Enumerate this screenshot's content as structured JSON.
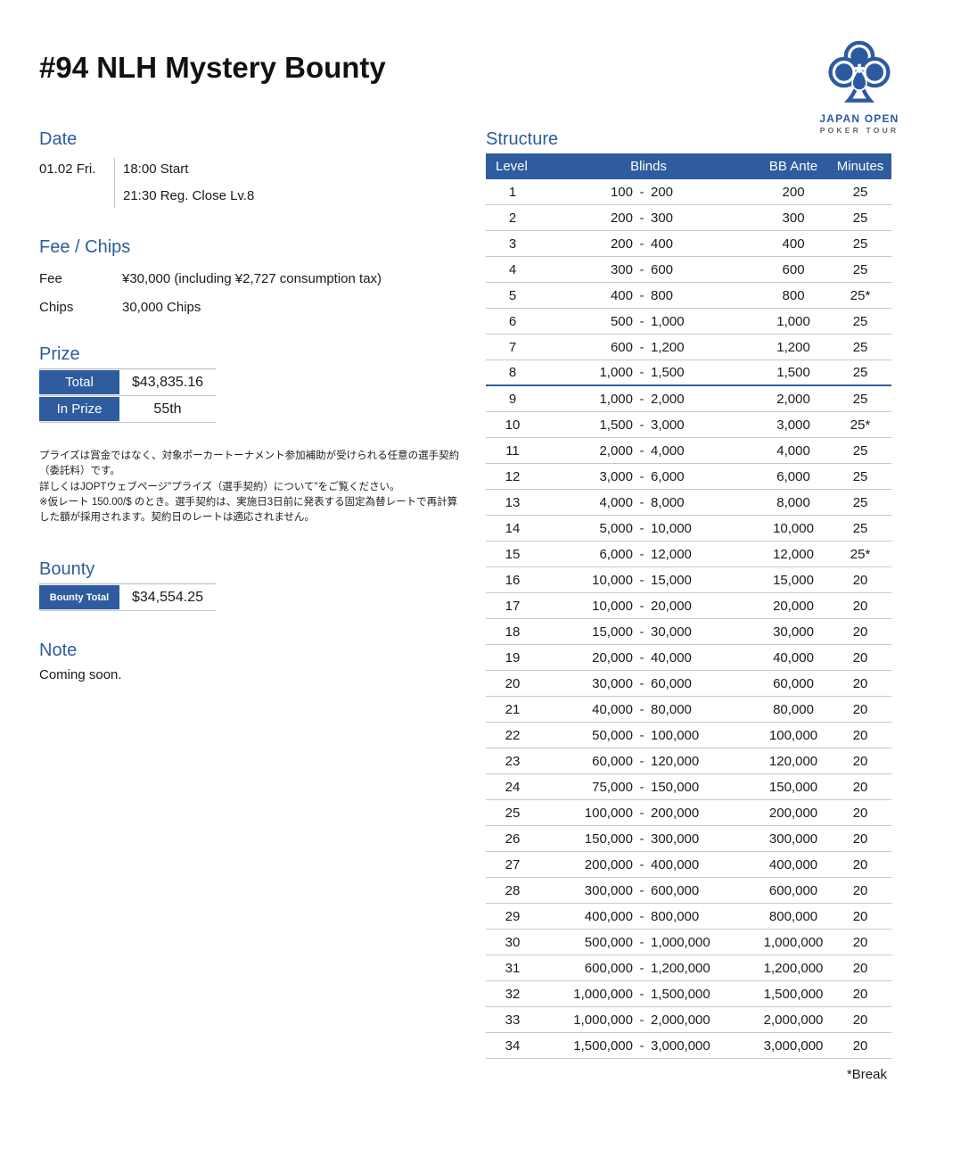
{
  "page": {
    "title": "#94 NLH Mystery Bounty"
  },
  "logo": {
    "icon": "club-drop-icon",
    "line1": "JAPAN OPEN",
    "line2": "POKER TOUR"
  },
  "date": {
    "heading": "Date",
    "day": "01.02 Fri.",
    "times": [
      "18:00 Start",
      "21:30 Reg. Close Lv.8"
    ]
  },
  "fee_chips": {
    "heading": "Fee / Chips",
    "rows": [
      {
        "label": "Fee",
        "value": "¥30,000 (including ¥2,727 consumption tax)"
      },
      {
        "label": "Chips",
        "value": "30,000 Chips"
      }
    ]
  },
  "prize": {
    "heading": "Prize",
    "rows": [
      {
        "label": "Total",
        "value": "$43,835.16"
      },
      {
        "label": "In Prize",
        "value": "55th"
      }
    ]
  },
  "disclaimer": {
    "lines": [
      "プライズは賞金ではなく、対象ポーカートーナメント参加補助が受けられる任意の選手契約（委託料）です。",
      "詳しくはJOPTウェブページ\"プライズ（選手契約）について\"をご覧ください。",
      "※仮レート 150.00/$ のとき。選手契約は、実施日3日前に発表する固定為替レートで再計算した額が採用されます。契約日のレートは適応されません。"
    ]
  },
  "bounty": {
    "heading": "Bounty",
    "label": "Bounty Total",
    "value": "$34,554.25"
  },
  "note": {
    "heading": "Note",
    "text": "Coming soon."
  },
  "structure": {
    "heading": "Structure",
    "columns": {
      "level": "Level",
      "blinds": "Blinds",
      "bb_ante": "BB Ante",
      "minutes": "Minutes"
    },
    "blinds_separator": "-",
    "reg_close_level": "8",
    "footnote": "*Break",
    "levels": [
      {
        "level": "1",
        "sb": "100",
        "bb": "200",
        "ante": "200",
        "min": "25"
      },
      {
        "level": "2",
        "sb": "200",
        "bb": "300",
        "ante": "300",
        "min": "25"
      },
      {
        "level": "3",
        "sb": "200",
        "bb": "400",
        "ante": "400",
        "min": "25"
      },
      {
        "level": "4",
        "sb": "300",
        "bb": "600",
        "ante": "600",
        "min": "25"
      },
      {
        "level": "5",
        "sb": "400",
        "bb": "800",
        "ante": "800",
        "min": "25*"
      },
      {
        "level": "6",
        "sb": "500",
        "bb": "1,000",
        "ante": "1,000",
        "min": "25"
      },
      {
        "level": "7",
        "sb": "600",
        "bb": "1,200",
        "ante": "1,200",
        "min": "25"
      },
      {
        "level": "8",
        "sb": "1,000",
        "bb": "1,500",
        "ante": "1,500",
        "min": "25"
      },
      {
        "level": "9",
        "sb": "1,000",
        "bb": "2,000",
        "ante": "2,000",
        "min": "25"
      },
      {
        "level": "10",
        "sb": "1,500",
        "bb": "3,000",
        "ante": "3,000",
        "min": "25*"
      },
      {
        "level": "11",
        "sb": "2,000",
        "bb": "4,000",
        "ante": "4,000",
        "min": "25"
      },
      {
        "level": "12",
        "sb": "3,000",
        "bb": "6,000",
        "ante": "6,000",
        "min": "25"
      },
      {
        "level": "13",
        "sb": "4,000",
        "bb": "8,000",
        "ante": "8,000",
        "min": "25"
      },
      {
        "level": "14",
        "sb": "5,000",
        "bb": "10,000",
        "ante": "10,000",
        "min": "25"
      },
      {
        "level": "15",
        "sb": "6,000",
        "bb": "12,000",
        "ante": "12,000",
        "min": "25*"
      },
      {
        "level": "16",
        "sb": "10,000",
        "bb": "15,000",
        "ante": "15,000",
        "min": "20"
      },
      {
        "level": "17",
        "sb": "10,000",
        "bb": "20,000",
        "ante": "20,000",
        "min": "20"
      },
      {
        "level": "18",
        "sb": "15,000",
        "bb": "30,000",
        "ante": "30,000",
        "min": "20"
      },
      {
        "level": "19",
        "sb": "20,000",
        "bb": "40,000",
        "ante": "40,000",
        "min": "20"
      },
      {
        "level": "20",
        "sb": "30,000",
        "bb": "60,000",
        "ante": "60,000",
        "min": "20"
      },
      {
        "level": "21",
        "sb": "40,000",
        "bb": "80,000",
        "ante": "80,000",
        "min": "20"
      },
      {
        "level": "22",
        "sb": "50,000",
        "bb": "100,000",
        "ante": "100,000",
        "min": "20"
      },
      {
        "level": "23",
        "sb": "60,000",
        "bb": "120,000",
        "ante": "120,000",
        "min": "20"
      },
      {
        "level": "24",
        "sb": "75,000",
        "bb": "150,000",
        "ante": "150,000",
        "min": "20"
      },
      {
        "level": "25",
        "sb": "100,000",
        "bb": "200,000",
        "ante": "200,000",
        "min": "20"
      },
      {
        "level": "26",
        "sb": "150,000",
        "bb": "300,000",
        "ante": "300,000",
        "min": "20"
      },
      {
        "level": "27",
        "sb": "200,000",
        "bb": "400,000",
        "ante": "400,000",
        "min": "20"
      },
      {
        "level": "28",
        "sb": "300,000",
        "bb": "600,000",
        "ante": "600,000",
        "min": "20"
      },
      {
        "level": "29",
        "sb": "400,000",
        "bb": "800,000",
        "ante": "800,000",
        "min": "20"
      },
      {
        "level": "30",
        "sb": "500,000",
        "bb": "1,000,000",
        "ante": "1,000,000",
        "min": "20"
      },
      {
        "level": "31",
        "sb": "600,000",
        "bb": "1,200,000",
        "ante": "1,200,000",
        "min": "20"
      },
      {
        "level": "32",
        "sb": "1,000,000",
        "bb": "1,500,000",
        "ante": "1,500,000",
        "min": "20"
      },
      {
        "level": "33",
        "sb": "1,000,000",
        "bb": "2,000,000",
        "ante": "2,000,000",
        "min": "20"
      },
      {
        "level": "34",
        "sb": "1,500,000",
        "bb": "3,000,000",
        "ante": "3,000,000",
        "min": "20"
      }
    ]
  },
  "colors": {
    "accent_blue": "#2E5C9E",
    "logo_blue": "#2B5AA0",
    "row_border": "#C8C8C8",
    "logo_gray": "#63676D"
  }
}
